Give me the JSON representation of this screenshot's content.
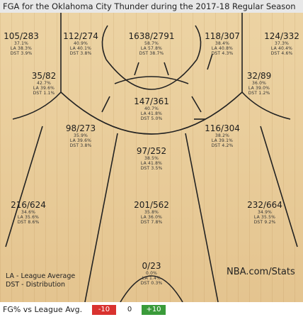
{
  "title": "FGA for the Oklahoma City Thunder during the 2017-18 Regular Season",
  "legend": {
    "la_note": "LA - League Average",
    "dst_note": "DST - Distribution"
  },
  "brand": "NBA.com/Stats",
  "footer": {
    "label": "FG% vs League Avg.",
    "neg": "-10",
    "zero": "0",
    "pos": "+10"
  },
  "colors": {
    "neg": "#d9322f",
    "pos": "#3a9b3a",
    "court": "#e9cd9b",
    "lines": "#222222"
  },
  "chart_data": {
    "type": "shot-chart",
    "zones": [
      {
        "id": "left-corner-3",
        "fg": "105/283",
        "pct": "37.1%",
        "la": "LA 38.3%",
        "dst": "DST 3.9%"
      },
      {
        "id": "left-wing-3",
        "fg": "112/274",
        "pct": "40.9%",
        "la": "LA 40.1%",
        "dst": "DST 3.8%"
      },
      {
        "id": "top-key-3",
        "fg": "1638/2791",
        "pct": "58.7%",
        "la": "LA 57.8%",
        "dst": "DST 38.7%"
      },
      {
        "id": "right-wing-3",
        "fg": "118/307",
        "pct": "38.4%",
        "la": "LA 40.8%",
        "dst": "DST 4.3%"
      },
      {
        "id": "right-corner-3",
        "fg": "124/332",
        "pct": "37.3%",
        "la": "LA 40.4%",
        "dst": "DST 4.6%"
      },
      {
        "id": "left-baseline-mid",
        "fg": "35/82",
        "pct": "42.7%",
        "la": "LA 39.6%",
        "dst": "DST 1.1%"
      },
      {
        "id": "paint-center",
        "fg": "147/361",
        "pct": "40.7%",
        "la": "LA 41.8%",
        "dst": "DST 5.0%"
      },
      {
        "id": "right-baseline-mid",
        "fg": "32/89",
        "pct": "36.0%",
        "la": "LA 39.0%",
        "dst": "DST 1.2%"
      },
      {
        "id": "left-elbow-mid",
        "fg": "98/273",
        "pct": "35.9%",
        "la": "LA 39.6%",
        "dst": "DST 3.8%"
      },
      {
        "id": "top-mid",
        "fg": "97/252",
        "pct": "38.5%",
        "la": "LA 41.8%",
        "dst": "DST 3.5%"
      },
      {
        "id": "right-elbow-mid",
        "fg": "116/304",
        "pct": "38.2%",
        "la": "LA 39.1%",
        "dst": "DST 4.2%"
      },
      {
        "id": "left-wing-deep-3",
        "fg": "216/624",
        "pct": "34.6%",
        "la": "LA 35.6%",
        "dst": "DST 8.6%"
      },
      {
        "id": "top-deep-3",
        "fg": "201/562",
        "pct": "35.8%",
        "la": "LA 36.0%",
        "dst": "DST 7.8%"
      },
      {
        "id": "right-wing-deep-3",
        "fg": "232/664",
        "pct": "34.9%",
        "la": "LA 35.5%",
        "dst": "DST 9.2%"
      },
      {
        "id": "backcourt",
        "fg": "0/23",
        "pct": "0.0%",
        "la": "LA 1.4%",
        "dst": "DST 0.3%"
      }
    ]
  }
}
